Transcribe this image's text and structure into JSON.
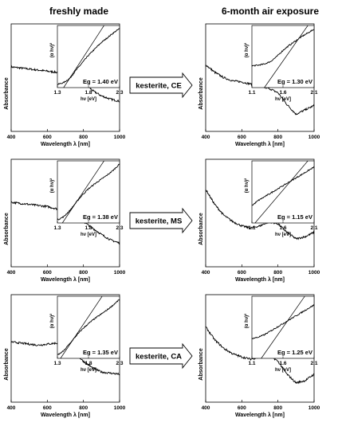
{
  "columns": {
    "left_title": "freshly made",
    "right_title": "6-month air exposure"
  },
  "chart_data": [
    {
      "type": "line",
      "row": 0,
      "column": "left",
      "xlabel": "Wavelength λ [nm]",
      "ylabel": "Absorbance",
      "xlim": [
        400,
        1000
      ],
      "xticks": [
        "400",
        "600",
        "800",
        "1000"
      ],
      "series": [
        {
          "x": [
            400,
            500,
            600,
            700,
            750,
            800,
            850,
            900,
            950,
            1000
          ],
          "y": [
            0.6,
            0.58,
            0.56,
            0.54,
            0.52,
            0.46,
            0.38,
            0.33,
            0.3,
            0.28
          ]
        }
      ],
      "inset": {
        "xlabel": "hν [eV]",
        "ylabel": "(α hν)²",
        "xlim": [
          1.3,
          2.3
        ],
        "xticks": [
          "1.3",
          "1.8",
          "2.3"
        ],
        "annotation": "Eg = 1.40 eV",
        "eg": 1.4,
        "curve": {
          "x": [
            1.3,
            1.4,
            1.5,
            1.6,
            1.7,
            1.8,
            1.9,
            2.0,
            2.1,
            2.2,
            2.3
          ],
          "y": [
            0.05,
            0.08,
            0.15,
            0.28,
            0.4,
            0.52,
            0.62,
            0.72,
            0.8,
            0.88,
            0.95
          ]
        },
        "tangent": {
          "x": [
            1.4,
            2.05
          ],
          "y": [
            0.0,
            1.0
          ]
        }
      }
    },
    {
      "type": "line",
      "row": 0,
      "column": "right",
      "xlabel": "Wavelength λ [nm]",
      "ylabel": "Absorbance",
      "xlim": [
        400,
        1000
      ],
      "xticks": [
        "400",
        "600",
        "800",
        "1000"
      ],
      "series": [
        {
          "x": [
            400,
            450,
            500,
            550,
            600,
            650,
            700,
            750,
            800,
            850,
            900,
            950,
            1000
          ],
          "y": [
            0.62,
            0.55,
            0.5,
            0.47,
            0.46,
            0.44,
            0.42,
            0.4,
            0.36,
            0.25,
            0.16,
            0.2,
            0.24
          ]
        }
      ],
      "inset": {
        "xlabel": "hν [eV]",
        "ylabel": "(α hν)²",
        "xlim": [
          1.1,
          2.1
        ],
        "xticks": [
          "1.1",
          "1.6",
          "2.1"
        ],
        "annotation": "Eg = 1.30 eV",
        "eg": 1.3,
        "curve": {
          "x": [
            1.1,
            1.2,
            1.3,
            1.4,
            1.5,
            1.6,
            1.7,
            1.8,
            1.9,
            2.0,
            2.1
          ],
          "y": [
            0.35,
            0.36,
            0.38,
            0.42,
            0.5,
            0.6,
            0.68,
            0.75,
            0.82,
            0.88,
            0.94
          ]
        },
        "tangent": {
          "x": [
            1.3,
            2.0
          ],
          "y": [
            0.0,
            1.0
          ]
        }
      }
    },
    {
      "type": "line",
      "row": 1,
      "column": "left",
      "xlabel": "Wavelength λ [nm]",
      "ylabel": "Absorbance",
      "xlim": [
        400,
        1000
      ],
      "xticks": [
        "400",
        "600",
        "800",
        "1000"
      ],
      "series": [
        {
          "x": [
            400,
            450,
            500,
            550,
            600,
            650,
            700,
            750,
            800,
            850,
            900,
            950,
            1000
          ],
          "y": [
            0.6,
            0.59,
            0.58,
            0.57,
            0.56,
            0.54,
            0.51,
            0.47,
            0.42,
            0.36,
            0.3,
            0.25,
            0.22
          ]
        }
      ],
      "inset": {
        "xlabel": "hν [eV]",
        "ylabel": "(α hν)²",
        "xlim": [
          1.3,
          2.3
        ],
        "xticks": [
          "1.3",
          "1.8",
          "2.3"
        ],
        "annotation": "Eg = 1.38 eV",
        "eg": 1.38,
        "curve": {
          "x": [
            1.3,
            1.4,
            1.5,
            1.6,
            1.7,
            1.8,
            1.9,
            2.0,
            2.1,
            2.2,
            2.3
          ],
          "y": [
            0.05,
            0.1,
            0.2,
            0.33,
            0.45,
            0.55,
            0.63,
            0.7,
            0.77,
            0.85,
            0.95
          ]
        },
        "tangent": {
          "x": [
            1.38,
            2.05
          ],
          "y": [
            0.0,
            1.0
          ]
        }
      }
    },
    {
      "type": "line",
      "row": 1,
      "column": "right",
      "xlabel": "Wavelength λ [nm]",
      "ylabel": "Absorbance",
      "xlim": [
        400,
        1000
      ],
      "xticks": [
        "400",
        "600",
        "800",
        "1000"
      ],
      "series": [
        {
          "x": [
            400,
            450,
            500,
            550,
            600,
            650,
            700,
            750,
            800,
            850,
            900,
            950,
            1000
          ],
          "y": [
            0.72,
            0.58,
            0.48,
            0.42,
            0.38,
            0.36,
            0.38,
            0.42,
            0.4,
            0.32,
            0.26,
            0.28,
            0.32
          ]
        }
      ],
      "inset": {
        "xlabel": "hν [eV]",
        "ylabel": "(α hν)²",
        "xlim": [
          1.1,
          2.1
        ],
        "xticks": [
          "1.1",
          "1.6",
          "2.1"
        ],
        "annotation": "Eg = 1.15 eV",
        "eg": 1.15,
        "curve": {
          "x": [
            1.1,
            1.2,
            1.3,
            1.4,
            1.5,
            1.6,
            1.7,
            1.8,
            1.9,
            2.0,
            2.1
          ],
          "y": [
            0.28,
            0.36,
            0.42,
            0.48,
            0.54,
            0.6,
            0.66,
            0.72,
            0.78,
            0.84,
            0.9
          ]
        },
        "tangent": {
          "x": [
            1.15,
            2.0
          ],
          "y": [
            0.0,
            1.0
          ]
        }
      }
    },
    {
      "type": "line",
      "row": 2,
      "column": "left",
      "xlabel": "Wavelength λ [nm]",
      "ylabel": "Absorbance",
      "xlim": [
        400,
        1000
      ],
      "xticks": [
        "400",
        "600",
        "800",
        "1000"
      ],
      "series": [
        {
          "x": [
            400,
            450,
            500,
            550,
            600,
            650,
            700,
            750,
            800,
            850,
            900,
            950,
            1000
          ],
          "y": [
            0.56,
            0.55,
            0.54,
            0.53,
            0.54,
            0.55,
            0.52,
            0.46,
            0.38,
            0.32,
            0.28,
            0.27,
            0.26
          ]
        }
      ],
      "inset": {
        "xlabel": "hν [eV]",
        "ylabel": "(α hν)²",
        "xlim": [
          1.3,
          2.3
        ],
        "xticks": [
          "1.3",
          "1.8",
          "2.3"
        ],
        "annotation": "Eg = 1.35 eV",
        "eg": 1.35,
        "curve": {
          "x": [
            1.3,
            1.4,
            1.5,
            1.6,
            1.7,
            1.8,
            1.9,
            2.0,
            2.1,
            2.2,
            2.3
          ],
          "y": [
            0.05,
            0.12,
            0.24,
            0.36,
            0.47,
            0.56,
            0.64,
            0.71,
            0.78,
            0.86,
            0.95
          ]
        },
        "tangent": {
          "x": [
            1.35,
            2.02
          ],
          "y": [
            0.0,
            1.0
          ]
        }
      }
    },
    {
      "type": "line",
      "row": 2,
      "column": "right",
      "xlabel": "Wavelength λ [nm]",
      "ylabel": "Absorbance",
      "xlim": [
        400,
        1000
      ],
      "xticks": [
        "400",
        "600",
        "800",
        "1000"
      ],
      "series": [
        {
          "x": [
            400,
            450,
            500,
            550,
            600,
            650,
            700,
            750,
            800,
            850,
            900,
            950,
            1000
          ],
          "y": [
            0.7,
            0.58,
            0.5,
            0.45,
            0.42,
            0.4,
            0.42,
            0.44,
            0.38,
            0.26,
            0.18,
            0.2,
            0.26
          ]
        }
      ],
      "inset": {
        "xlabel": "hν [eV]",
        "ylabel": "(α hν)²",
        "xlim": [
          1.1,
          2.1
        ],
        "xticks": [
          "1.1",
          "1.6",
          "2.1"
        ],
        "annotation": "Eg = 1.25 eV",
        "eg": 1.25,
        "curve": {
          "x": [
            1.1,
            1.2,
            1.3,
            1.4,
            1.5,
            1.6,
            1.7,
            1.8,
            1.9,
            2.0,
            2.1
          ],
          "y": [
            0.32,
            0.34,
            0.38,
            0.44,
            0.5,
            0.56,
            0.62,
            0.68,
            0.74,
            0.8,
            0.86
          ]
        },
        "tangent": {
          "x": [
            1.25,
            1.95
          ],
          "y": [
            0.0,
            1.0
          ]
        }
      }
    }
  ],
  "arrows": [
    {
      "row": 0,
      "label": "kesterite, CE"
    },
    {
      "row": 1,
      "label": "kesterite, MS"
    },
    {
      "row": 2,
      "label": "kesterite, CA"
    }
  ]
}
